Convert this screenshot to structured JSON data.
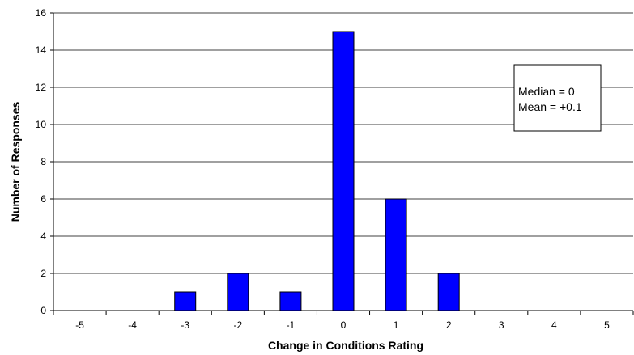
{
  "chart_data": {
    "type": "bar",
    "categories": [
      "-5",
      "-4",
      "-3",
      "-2",
      "-1",
      "0",
      "1",
      "2",
      "3",
      "4",
      "5"
    ],
    "values": [
      0,
      0,
      1,
      2,
      1,
      15,
      6,
      2,
      0,
      0,
      0
    ],
    "xlabel": "Change in Conditions Rating",
    "ylabel": "Number of Responses",
    "ylim": [
      0,
      16
    ],
    "yticks": [
      0,
      2,
      4,
      6,
      8,
      10,
      12,
      14,
      16
    ],
    "grid": true,
    "bar_color": "#0000ff",
    "annotation": {
      "lines": [
        "Median = 0",
        "Mean = +0.1"
      ],
      "placement": "top-right"
    }
  }
}
